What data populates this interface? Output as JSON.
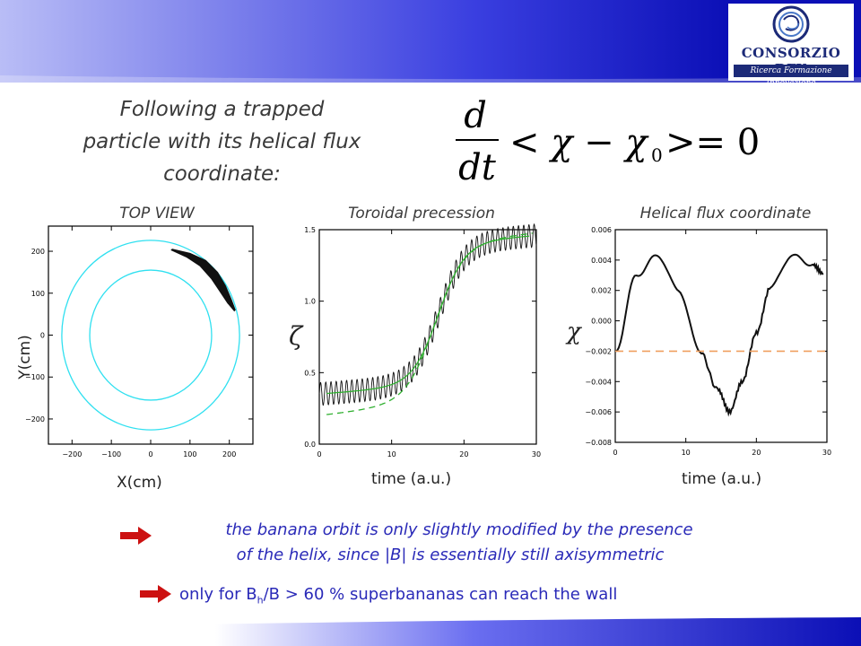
{
  "logo": {
    "name": "CONSORZIO RFX",
    "tagline": "Ricerca Formazione Innovazione"
  },
  "heading": {
    "line1": "Following a trapped",
    "line2": "particle with its helical flux",
    "line3": "coordinate:"
  },
  "equation": {
    "numerator": "d",
    "denominator": "dt",
    "body": "< χ − χ",
    "subscript": "0",
    "tail": ">= 0"
  },
  "colors": {
    "bar_dark": "#0b0fb6",
    "bar_light": "#b9bdf6",
    "accent_blue": "#2a2ab8",
    "arrow_red": "#cc1111",
    "cyan": "#30e0f0",
    "green": "#30b030",
    "orange": "#f0a060"
  },
  "chart_data": [
    {
      "type": "scatter",
      "title": "TOP VIEW",
      "xlabel": "X(cm)",
      "ylabel": "Y(cm)",
      "xlim": [
        -260,
        260
      ],
      "ylim": [
        -260,
        260
      ],
      "xticks": [
        -200,
        -100,
        0,
        100,
        200
      ],
      "yticks": [
        -200,
        -100,
        0,
        100,
        200
      ],
      "circles": [
        {
          "r": 226,
          "color": "#30e0f0"
        },
        {
          "r": 155,
          "color": "#30e0f0"
        }
      ],
      "orbit_trace": [
        [
          55,
          205
        ],
        [
          100,
          195
        ],
        [
          140,
          178
        ],
        [
          170,
          150
        ],
        [
          190,
          118
        ],
        [
          205,
          85
        ],
        [
          215,
          60
        ]
      ]
    },
    {
      "type": "line",
      "title": "Toroidal precession",
      "xlabel": "time (a.u.)",
      "ylabel": "ζ",
      "xlim": [
        0,
        30
      ],
      "ylim": [
        0,
        1.5
      ],
      "xticks": [
        0,
        10,
        20,
        30
      ],
      "yticks": [
        0.0,
        0.5,
        1.0,
        1.5
      ],
      "series": [
        {
          "kind": "oscillating",
          "color": "#111111"
        },
        {
          "kind": "smooth",
          "color": "#30b030"
        },
        {
          "kind": "dashed-fit",
          "color": "#30b030"
        }
      ]
    },
    {
      "type": "line",
      "title": "Helical flux coordinate",
      "xlabel": "time (a.u.)",
      "ylabel": "χ",
      "xlim": [
        0,
        30
      ],
      "ylim": [
        -0.008,
        0.006
      ],
      "xticks": [
        0,
        10,
        20,
        30
      ],
      "yticks": [
        -0.008,
        -0.006,
        -0.004,
        -0.002,
        0.0,
        0.002,
        0.004,
        0.006
      ],
      "ytick_labels": [
        "−0.008",
        "−0.006",
        "−0.004",
        "−0.002",
        "0.000",
        "0.002",
        "0.004",
        "0.006"
      ],
      "series": [
        {
          "kind": "chi",
          "color": "#111111",
          "points": [
            [
              0,
              -0.002
            ],
            [
              3,
              0.003
            ],
            [
              6,
              0.0043
            ],
            [
              9,
              0.002
            ],
            [
              12,
              -0.002
            ],
            [
              14.5,
              -0.0045
            ],
            [
              16.2,
              -0.006
            ],
            [
              18,
              -0.004
            ],
            [
              20,
              -0.0008
            ],
            [
              22,
              0.0022
            ],
            [
              25,
              0.0043
            ],
            [
              28,
              0.0037
            ],
            [
              29.5,
              0.0031
            ]
          ]
        },
        {
          "kind": "chi0",
          "color": "#f0a060",
          "value": -0.002
        }
      ]
    }
  ],
  "bullets": {
    "line1": "the banana orbit is only slightly modified by the presence",
    "line2": "of the helix, since |B| is essentially still axisymmetric",
    "b2_pre": "only for B",
    "b2_sub": "h",
    "b2_post": "/B > 60 % superbananas can reach the wall"
  }
}
